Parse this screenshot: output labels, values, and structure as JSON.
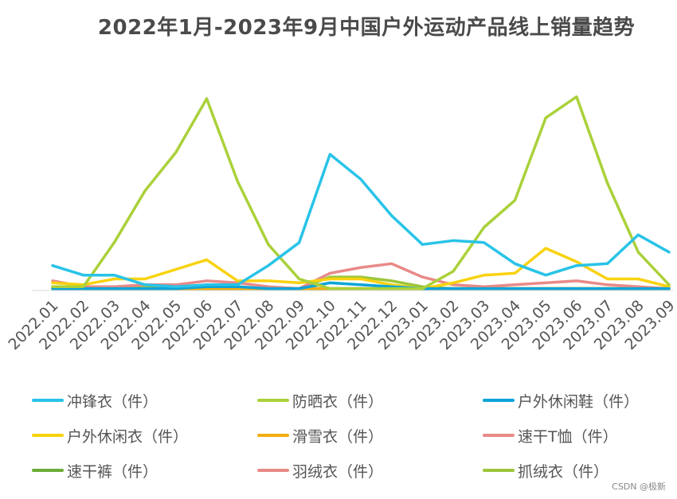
{
  "chart_data": {
    "type": "line",
    "title": "2022年1月-2023年9月中国户外运动产品线上销量趋势",
    "xlabel": "",
    "ylabel": "",
    "x": [
      "2022.01",
      "2022.02",
      "2022.03",
      "2022.04",
      "2022.05",
      "2022.06",
      "2022.07",
      "2022.08",
      "2022.09",
      "2022.10",
      "2022.11",
      "2022.12",
      "2023.01",
      "2023.02",
      "2023.03",
      "2023.04",
      "2023.05",
      "2023.06",
      "2023.07",
      "2023.08",
      "2023.09"
    ],
    "ylim": [
      0,
      100
    ],
    "grid": false,
    "legend_position": "bottom",
    "series": [
      {
        "name": "冲锋衣（件）",
        "color": "#29C3E8",
        "values": [
          13,
          8,
          8,
          3,
          2,
          3,
          3,
          13,
          25,
          71,
          58,
          39,
          24,
          26,
          25,
          14,
          8,
          13,
          14,
          29,
          20
        ]
      },
      {
        "name": "防晒衣（件）",
        "color": "#AAD13A",
        "values": [
          2,
          2,
          25,
          52,
          72,
          100,
          57,
          24,
          6,
          1,
          1,
          1,
          1,
          10,
          33,
          47,
          90,
          101,
          56,
          20,
          3
        ]
      },
      {
        "name": "户外休闲鞋（件）",
        "color": "#0DA4D8",
        "values": [
          1,
          1,
          1,
          1,
          1,
          2,
          2,
          1,
          1,
          4,
          3,
          2,
          1,
          1,
          1,
          1,
          1,
          1,
          1,
          1,
          1
        ]
      },
      {
        "name": "户外休闲衣（件）",
        "color": "#F9D20F",
        "values": [
          4,
          3,
          6,
          6,
          11,
          16,
          5,
          5,
          4,
          6,
          6,
          3,
          1,
          4,
          8,
          9,
          22,
          15,
          6,
          6,
          2
        ]
      },
      {
        "name": "滑雪衣（件）",
        "color": "#F2AE12",
        "values": [
          1,
          1,
          1,
          1,
          1,
          1,
          1,
          1,
          1,
          1,
          1,
          1,
          1,
          1,
          1,
          1,
          1,
          1,
          1,
          1,
          1
        ]
      },
      {
        "name": "速干T恤（件）",
        "color": "#E88A88",
        "values": [
          5,
          2,
          2,
          3,
          3,
          5,
          4,
          2,
          1,
          9,
          12,
          14,
          7,
          3,
          2,
          3,
          4,
          5,
          3,
          2,
          1
        ]
      },
      {
        "name": "速干裤（件）",
        "color": "#6BAD37",
        "values": [
          1,
          1,
          1,
          1,
          1,
          1,
          1,
          1,
          1,
          1,
          1,
          1,
          1,
          1,
          1,
          1,
          1,
          1,
          1,
          1,
          1
        ]
      },
      {
        "name": "羽绒衣（件）",
        "color": "#E88A88",
        "values": [
          1,
          1,
          1,
          1,
          1,
          1,
          1,
          1,
          1,
          1,
          1,
          1,
          1,
          1,
          1,
          1,
          1,
          1,
          1,
          1,
          1
        ]
      },
      {
        "name": "抓绒衣（件）",
        "color": "#9BC63A",
        "values": [
          2,
          1,
          1,
          2,
          1,
          1,
          1,
          1,
          1,
          7,
          7,
          5,
          2,
          1,
          1,
          1,
          1,
          1,
          1,
          1,
          1
        ]
      }
    ]
  },
  "watermark": "CSDN @极新"
}
